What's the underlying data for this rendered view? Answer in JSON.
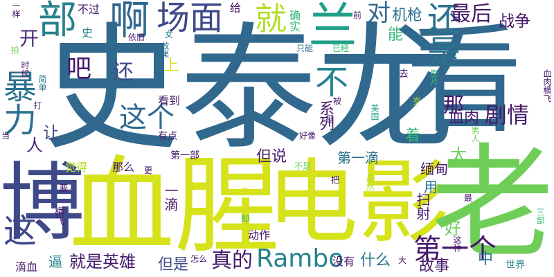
{
  "palette": {
    "dark_purple": "#46196a",
    "purple": "#482878",
    "indigo": "#3e4989",
    "blue": "#31688e",
    "teal_blue": "#2c728e",
    "teal": "#26828e",
    "sea_green": "#1f9e89",
    "green": "#35b779",
    "light_green": "#6ece58",
    "lime": "#b5de2b",
    "yellow": "#e2e418",
    "background": "#ffffff"
  },
  "words": [
    {
      "text": "史泰龙",
      "color": "#31688e"
    },
    {
      "text": "看",
      "color": "#31688e"
    },
    {
      "text": "血腥",
      "color": "#d6e21a"
    },
    {
      "text": "电影",
      "color": "#d6e21a"
    },
    {
      "text": "老",
      "color": "#6ece58"
    },
    {
      "text": "博",
      "color": "#3e4989"
    },
    {
      "text": "暴力",
      "color": "#2c728e"
    },
    {
      "text": "兰",
      "color": "#1f9e89"
    },
    {
      "text": "部",
      "color": "#26828e"
    },
    {
      "text": "啊",
      "color": "#31688e"
    },
    {
      "text": "场面",
      "color": "#3e4989"
    },
    {
      "text": "就",
      "color": "#b5de2b"
    },
    {
      "text": "还是",
      "color": "#2c728e"
    },
    {
      "text": "对",
      "color": "#31688e"
    },
    {
      "text": "最后",
      "color": "#46196a"
    },
    {
      "text": "机枪",
      "color": "#2c728e"
    },
    {
      "text": "战争",
      "color": "#46196a"
    },
    {
      "text": "吧",
      "color": "#46196a"
    },
    {
      "text": "还",
      "color": "#3e4989"
    },
    {
      "text": "不",
      "color": "#26828e"
    },
    {
      "text": "这个",
      "color": "#31688e"
    },
    {
      "text": "那",
      "color": "#46196a"
    },
    {
      "text": "剧情",
      "color": "#46196a"
    },
    {
      "text": "这",
      "color": "#3e4989"
    },
    {
      "text": "Rambo",
      "color": "#26828e"
    },
    {
      "text": "就是英雄",
      "color": "#46196a"
    },
    {
      "text": "第一个",
      "color": "#46196a"
    },
    {
      "text": "真的",
      "color": "#46196a"
    },
    {
      "text": "但是",
      "color": "#3e4989"
    },
    {
      "text": "什么",
      "color": "#2c728e"
    },
    {
      "text": "故事",
      "color": "#46196a"
    },
    {
      "text": "中",
      "color": "#2c728e"
    },
    {
      "text": "血肉",
      "color": "#46196a"
    },
    {
      "text": "太",
      "color": "#6ece58"
    },
    {
      "text": "着",
      "color": "#35b779"
    },
    {
      "text": "系列",
      "color": "#46196a"
    },
    {
      "text": "但说",
      "color": "#46196a"
    },
    {
      "text": "第一滴",
      "color": "#2c728e"
    },
    {
      "text": "缅甸",
      "color": "#46196a"
    },
    {
      "text": "用",
      "color": "#2c728e"
    },
    {
      "text": "扫射",
      "color": "#46196a"
    },
    {
      "text": "好",
      "color": "#6ece58"
    },
    {
      "text": "看到",
      "color": "#46196a"
    },
    {
      "text": "有点",
      "color": "#46196a"
    },
    {
      "text": "让",
      "color": "#3e4989"
    },
    {
      "text": "人",
      "color": "#482878"
    },
    {
      "text": "开",
      "color": "#482878"
    },
    {
      "text": "一样",
      "color": "#46196a"
    },
    {
      "text": "不过",
      "color": "#46196a"
    },
    {
      "text": "给",
      "color": "#46196a"
    },
    {
      "text": "确实",
      "color": "#35b779"
    },
    {
      "text": "能",
      "color": "#35b779"
    },
    {
      "text": "前",
      "color": "#46196a"
    },
    {
      "text": "只能",
      "color": "#2c728e"
    },
    {
      "text": "已经",
      "color": "#35b779"
    },
    {
      "text": "史",
      "color": "#26828e"
    },
    {
      "text": "依旧",
      "color": "#46196a"
    },
    {
      "text": "女",
      "color": "#26828e"
    },
    {
      "text": "效果",
      "color": "#2c728e"
    },
    {
      "text": "上",
      "color": "#d6e21a"
    },
    {
      "text": "去",
      "color": "#46196a"
    },
    {
      "text": "拍",
      "color": "#6ece58"
    },
    {
      "text": "时候",
      "color": "#46196a"
    },
    {
      "text": "简单",
      "color": "#2c728e"
    },
    {
      "text": "打",
      "color": "#3e4989"
    },
    {
      "text": "血肉横飞",
      "color": "#46196a"
    },
    {
      "text": "美国",
      "color": "#1f9e89"
    },
    {
      "text": "被",
      "color": "#46196a"
    },
    {
      "text": "挺",
      "color": "#46196a"
    },
    {
      "text": "好像",
      "color": "#46196a"
    },
    {
      "text": "男人",
      "color": "#6ece58"
    },
    {
      "text": "第一部",
      "color": "#46196a"
    },
    {
      "text": "觉得",
      "color": "#b5de2b"
    },
    {
      "text": "那么",
      "color": "#46196a"
    },
    {
      "text": "更",
      "color": "#46196a"
    },
    {
      "text": "不是",
      "color": "#6ece58"
    },
    {
      "text": "虽然",
      "color": "#b5de2b"
    },
    {
      "text": "把",
      "color": "#46196a"
    },
    {
      "text": "一滴",
      "color": "#46196a"
    },
    {
      "text": "要",
      "color": "#46196a"
    },
    {
      "text": "横飞",
      "color": "#46196a"
    },
    {
      "text": "多",
      "color": "#d6e21a"
    },
    {
      "text": "却",
      "color": "#35b779"
    },
    {
      "text": "动作",
      "color": "#46196a"
    },
    {
      "text": "最",
      "color": "#46196a"
    },
    {
      "text": "这种",
      "color": "#46196a"
    },
    {
      "text": "三部",
      "color": "#35b779"
    },
    {
      "text": "滴血",
      "color": "#46196a"
    },
    {
      "text": "逼",
      "color": "#26828e"
    },
    {
      "text": "怎么",
      "color": "#46196a"
    },
    {
      "text": "没有",
      "color": "#46196a"
    },
    {
      "text": "大",
      "color": "#46196a"
    },
    {
      "text": "世界",
      "color": "#26828e"
    },
    {
      "text": "影片",
      "color": "#35b779"
    },
    {
      "text": "岁",
      "color": "#b5de2b"
    },
    {
      "text": "当",
      "color": "#46196a"
    }
  ]
}
